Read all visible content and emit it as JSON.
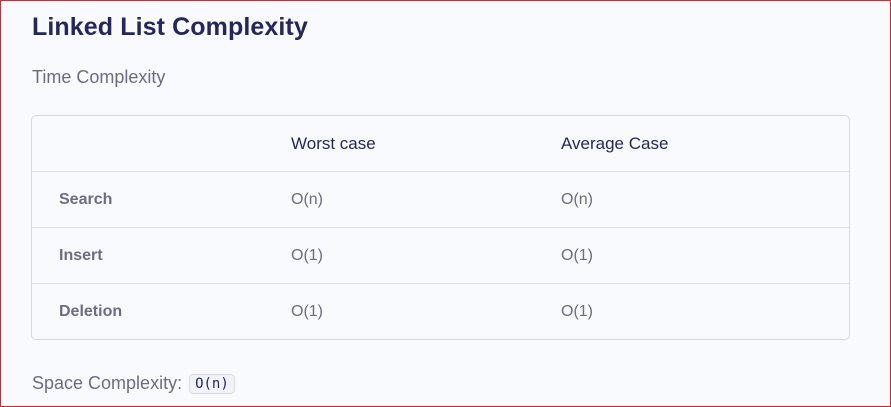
{
  "heading": "Linked List Complexity",
  "time_complexity_label": "Time Complexity",
  "table": {
    "columns": [
      "",
      "Worst case",
      "Average Case"
    ],
    "rows": [
      {
        "operation": "Search",
        "worst": "O(n)",
        "average": "O(n)"
      },
      {
        "operation": "Insert",
        "worst": "O(1)",
        "average": "O(1)"
      },
      {
        "operation": "Deletion",
        "worst": "O(1)",
        "average": "O(1)"
      }
    ]
  },
  "space_complexity": {
    "label": "Space Complexity:",
    "value": "O(n)"
  }
}
